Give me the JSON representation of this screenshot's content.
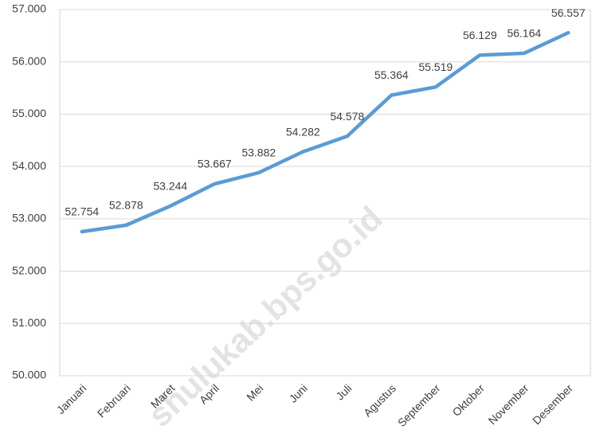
{
  "chart_data": {
    "type": "line",
    "categories": [
      "Januari",
      "Februari",
      "Maret",
      "April",
      "Mei",
      "Juni",
      "Juli",
      "Agustus",
      "September",
      "Oktober",
      "November",
      "Desember"
    ],
    "series": [
      {
        "color": "#5b9bd5",
        "values": [
          52754,
          52878,
          53244,
          53667,
          53882,
          54282,
          54578,
          55364,
          55519,
          56129,
          56164,
          56557
        ],
        "value_labels": [
          "52.754",
          "52.878",
          "53.244",
          "53.667",
          "53.882",
          "54.282",
          "54.578",
          "55.364",
          "55.519",
          "56.129",
          "56.164",
          "56.557"
        ]
      }
    ],
    "ylim": [
      50000,
      57000
    ],
    "yticks": [
      {
        "value": 50000,
        "label": "50.000"
      },
      {
        "value": 51000,
        "label": "51.000"
      },
      {
        "value": 52000,
        "label": "52.000"
      },
      {
        "value": 53000,
        "label": "53.000"
      },
      {
        "value": 54000,
        "label": "54.000"
      },
      {
        "value": 55000,
        "label": "55.000"
      },
      {
        "value": 56000,
        "label": "56.000"
      },
      {
        "value": 57000,
        "label": "57.000"
      }
    ],
    "grid": true,
    "watermark": "shulukab.bps.go.id"
  }
}
